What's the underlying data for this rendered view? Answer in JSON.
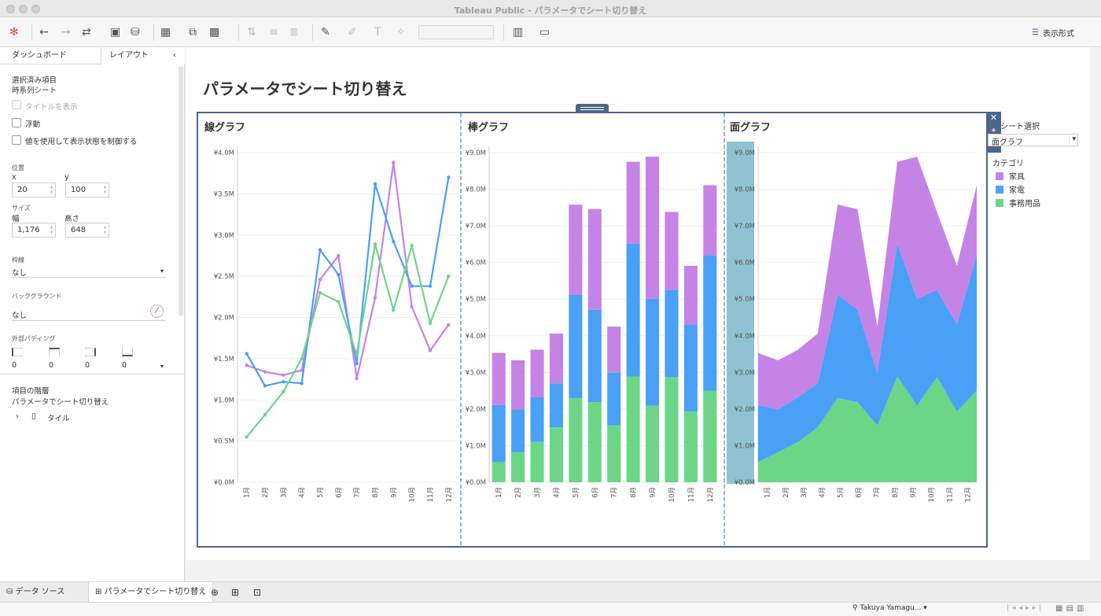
{
  "window": {
    "title": "Tableau Public - パラメータでシート切り替え"
  },
  "toolbar": {
    "show_me_label": "表示形式"
  },
  "left_pane": {
    "tabs": [
      "ダッシュボード",
      "レイアウト"
    ],
    "selected_item_label": "選択済み項目",
    "selected_item_value": "時系列シート",
    "checkboxes": [
      "タイトルを表示",
      "浮動",
      "値を使用して表示状態を制御する"
    ],
    "position_label": "位置",
    "x_label": "x",
    "x_value": "20",
    "y_label": "y",
    "y_value": "100",
    "size_label": "サイズ",
    "w_label": "幅",
    "w_value": "1,176",
    "h_label": "高さ",
    "h_value": "648",
    "border_label": "枠線",
    "border_value": "なし",
    "background_label": "バックグラウンド",
    "background_value": "なし",
    "padding_label": "外部パディング",
    "padding_values": [
      "0",
      "0",
      "0",
      "0"
    ],
    "hierarchy_label": "項目の階層",
    "hierarchy_root": "パラメータでシート切り替え",
    "hierarchy_child": "タイル"
  },
  "dashboard": {
    "title": "パラメータでシート切り替え",
    "panel_titles": [
      "線グラフ",
      "棒グラフ",
      "面グラフ"
    ],
    "param_label": "シート選択",
    "param_value": "面グラフ",
    "legend_title": "カテゴリ",
    "legend_items": [
      {
        "label": "家具",
        "color": "#c583e6"
      },
      {
        "label": "家電",
        "color": "#4aa0f7"
      },
      {
        "label": "事務用品",
        "color": "#6dd587"
      }
    ]
  },
  "chart_data": [
    {
      "type": "line",
      "title": "線グラフ",
      "categories": [
        "1月",
        "2月",
        "3月",
        "4月",
        "5月",
        "6月",
        "7月",
        "8月",
        "9月",
        "10月",
        "11月",
        "12月"
      ],
      "ylim": [
        0,
        4.0
      ],
      "ytick_labels": [
        "¥0.0M",
        "¥0.5M",
        "¥1.0M",
        "¥1.5M",
        "¥2.0M",
        "¥2.5M",
        "¥3.0M",
        "¥3.5M",
        "¥4.0M"
      ],
      "series": [
        {
          "name": "家具",
          "values": [
            1.42,
            1.34,
            1.3,
            1.36,
            2.46,
            2.75,
            1.26,
            2.24,
            3.88,
            2.13,
            1.6,
            1.91
          ]
        },
        {
          "name": "家電",
          "values": [
            1.56,
            1.17,
            1.22,
            1.2,
            2.82,
            2.52,
            1.44,
            3.62,
            2.92,
            2.38,
            2.38,
            3.7
          ]
        },
        {
          "name": "事務用品",
          "values": [
            0.55,
            0.82,
            1.1,
            1.5,
            2.3,
            2.19,
            1.55,
            2.89,
            2.09,
            2.87,
            1.93,
            2.5
          ]
        }
      ]
    },
    {
      "type": "bar",
      "title": "棒グラフ",
      "stacked": true,
      "categories": [
        "1月",
        "2月",
        "3月",
        "4月",
        "5月",
        "6月",
        "7月",
        "8月",
        "9月",
        "10月",
        "11月",
        "12月"
      ],
      "ylim": [
        0,
        9.0
      ],
      "ytick_labels": [
        "¥0.0M",
        "¥1.0M",
        "¥2.0M",
        "¥3.0M",
        "¥4.0M",
        "¥5.0M",
        "¥6.0M",
        "¥7.0M",
        "¥8.0M",
        "¥9.0M"
      ],
      "series": [
        {
          "name": "事務用品",
          "values": [
            0.55,
            0.82,
            1.1,
            1.5,
            2.3,
            2.19,
            1.55,
            2.89,
            2.09,
            2.87,
            1.93,
            2.5
          ]
        },
        {
          "name": "家電",
          "values": [
            1.56,
            1.17,
            1.22,
            1.2,
            2.82,
            2.52,
            1.44,
            3.62,
            2.92,
            2.38,
            2.38,
            3.7
          ]
        },
        {
          "name": "家具",
          "values": [
            1.42,
            1.34,
            1.3,
            1.36,
            2.46,
            2.75,
            1.26,
            2.24,
            3.88,
            2.13,
            1.6,
            1.91
          ]
        }
      ]
    },
    {
      "type": "area",
      "title": "面グラフ",
      "stacked": true,
      "categories": [
        "1月",
        "2月",
        "3月",
        "4月",
        "5月",
        "6月",
        "7月",
        "8月",
        "9月",
        "10月",
        "11月",
        "12月"
      ],
      "ylim": [
        0,
        9.0
      ],
      "ytick_labels": [
        "¥0.0M",
        "¥1.0M",
        "¥2.0M",
        "¥3.0M",
        "¥4.0M",
        "¥5.0M",
        "¥6.0M",
        "¥7.0M",
        "¥8.0M",
        "¥9.0M"
      ],
      "series": [
        {
          "name": "事務用品",
          "values": [
            0.55,
            0.82,
            1.1,
            1.5,
            2.3,
            2.19,
            1.55,
            2.89,
            2.09,
            2.87,
            1.93,
            2.5
          ]
        },
        {
          "name": "家電",
          "values": [
            1.56,
            1.17,
            1.22,
            1.2,
            2.82,
            2.52,
            1.44,
            3.62,
            2.92,
            2.38,
            2.38,
            3.7
          ]
        },
        {
          "name": "家具",
          "values": [
            1.42,
            1.34,
            1.3,
            1.36,
            2.46,
            2.75,
            1.26,
            2.24,
            3.88,
            2.13,
            1.6,
            1.91
          ]
        }
      ]
    }
  ],
  "bottom_tabs": {
    "data_source": "データ ソース",
    "sheet": "パラメータでシート切り替え"
  },
  "status": {
    "user": "Takuya Yamagu..."
  }
}
